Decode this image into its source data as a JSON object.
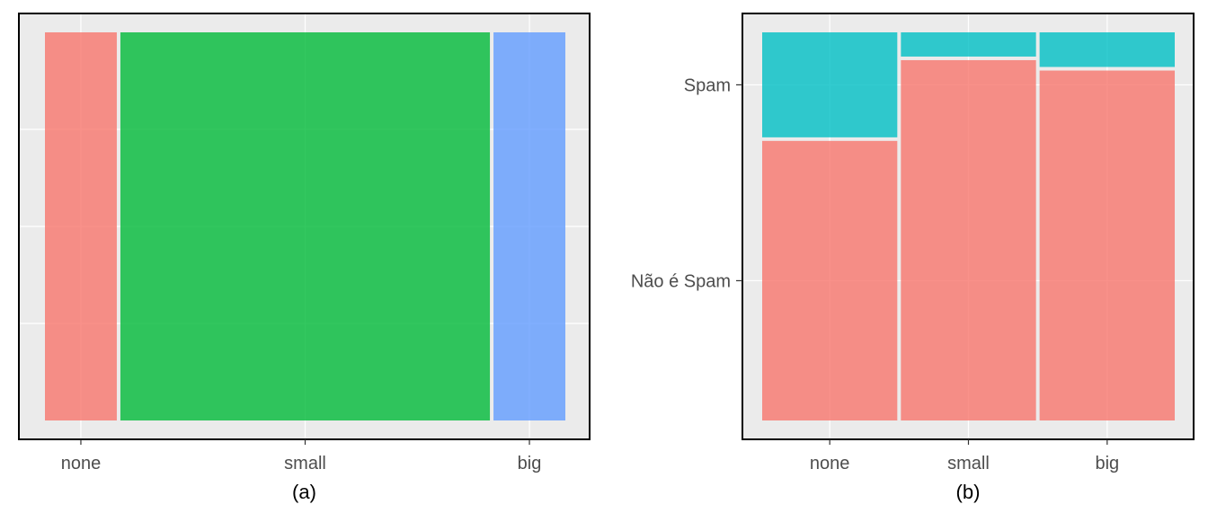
{
  "chart_data": [
    {
      "type": "mosaic",
      "caption": "(a)",
      "xlabel": "",
      "ylabel": "",
      "categories": [
        "none",
        "small",
        "big"
      ],
      "proportions": [
        0.14,
        0.72,
        0.14
      ],
      "colors": [
        "#F8766D",
        "#00BA38",
        "#619CFF"
      ],
      "y_ticks_shown": false,
      "grid": true,
      "legend": "none"
    },
    {
      "type": "mosaic",
      "caption": "(b)",
      "xlabel": "",
      "ylabel": "",
      "categories": [
        "none",
        "small",
        "big"
      ],
      "proportions": [
        0.3333,
        0.3333,
        0.3334
      ],
      "y_levels": [
        "Não é Spam",
        "Spam"
      ],
      "series": [
        {
          "name": "Não é Spam",
          "values": [
            0.727,
            0.937,
            0.91
          ]
        },
        {
          "name": "Spam",
          "values": [
            0.273,
            0.063,
            0.09
          ]
        }
      ],
      "colors": [
        "#F8766D",
        "#00BFC4"
      ],
      "grid": true,
      "legend": "none"
    }
  ]
}
